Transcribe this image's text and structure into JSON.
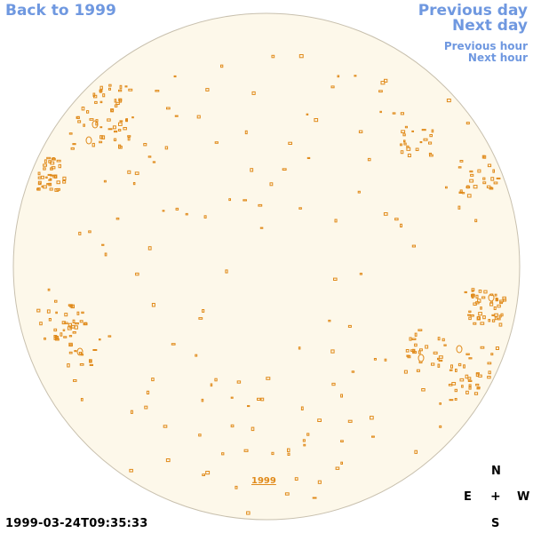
{
  "nav": {
    "back_label": "Back to 1999",
    "prev_day_label": "Previous day",
    "next_day_label": "Next day",
    "prev_hour_label": "Previous hour",
    "next_hour_label": "Next hour"
  },
  "disk": {
    "fill_color": "#fdf8ea",
    "edge_color": "#c8c0ae",
    "contour_color": "#e08a1a",
    "year_link": "1999"
  },
  "compass": {
    "n": "N",
    "e": "E",
    "center": "+",
    "w": "W",
    "s": "S"
  },
  "timestamp": "1999-03-24T09:35:33",
  "colors": {
    "link": "#6f98e0",
    "text": "#000000"
  }
}
